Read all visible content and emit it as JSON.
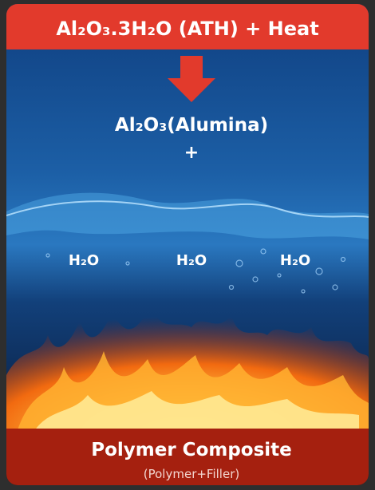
{
  "header": {
    "title": "Al₂O₃.3H₂O (ATH) + Heat"
  },
  "product": {
    "label": "Al₂O₃(Alumina)",
    "plus": "+"
  },
  "water_labels": [
    "H₂O",
    "H₂O",
    "H₂O"
  ],
  "footer": {
    "title": "Polymer Composite",
    "subtitle": "(Polymer+Filler)"
  }
}
